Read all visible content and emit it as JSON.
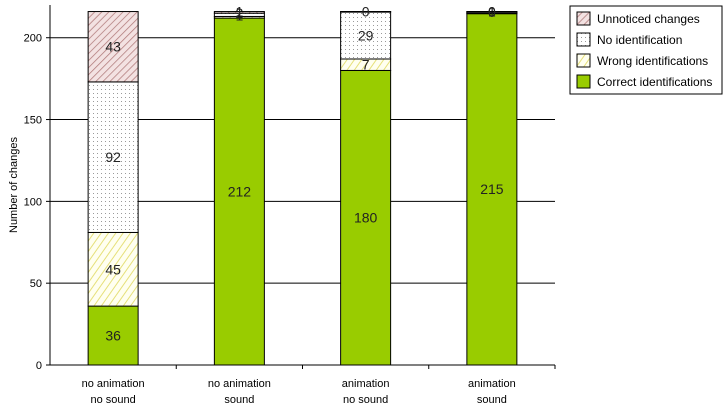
{
  "chart_data": {
    "type": "bar",
    "stacked": true,
    "categories": [
      [
        "no animation",
        "no sound"
      ],
      [
        "no animation",
        "sound"
      ],
      [
        "animation",
        "no sound"
      ],
      [
        "animation",
        "sound"
      ]
    ],
    "series": [
      {
        "name": "Correct identifications",
        "values": [
          36,
          212,
          180,
          215
        ],
        "color": "#99cc00",
        "pattern": "solid"
      },
      {
        "name": "Wrong identifications",
        "values": [
          45,
          1,
          7,
          0
        ],
        "color": "#ffff99",
        "pattern": "light-diagonal"
      },
      {
        "name": "No identification",
        "values": [
          92,
          2,
          29,
          1
        ],
        "color": "#ffffff",
        "pattern": "dots"
      },
      {
        "name": "Unnoticed changes",
        "values": [
          43,
          1,
          0,
          0
        ],
        "color": "#e8c8c8",
        "pattern": "dark-diagonal"
      }
    ],
    "legend_order": [
      "Unnoticed changes",
      "No identification",
      "Wrong identifications",
      "Correct identifications"
    ],
    "ylabel": "Number of changes",
    "xlabel": "",
    "title": "",
    "ylim": [
      0,
      220
    ],
    "yticks": [
      0,
      50,
      100,
      150,
      200
    ],
    "grid": true,
    "legend_position": "top-right"
  }
}
